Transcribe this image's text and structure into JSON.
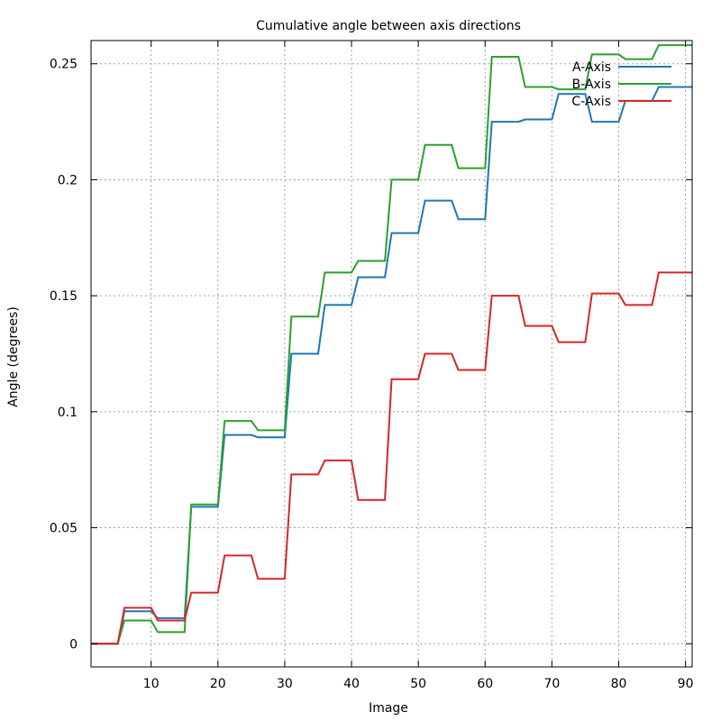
{
  "chart_data": {
    "type": "line",
    "title": "Cumulative angle between axis directions",
    "xlabel": "Image",
    "ylabel": "Angle (degrees)",
    "xlim": [
      1,
      91
    ],
    "ylim": [
      -0.01,
      0.26
    ],
    "x_ticks": [
      10,
      20,
      30,
      40,
      50,
      60,
      70,
      80,
      90
    ],
    "y_ticks": [
      0,
      0.05,
      0.1,
      0.15,
      0.2,
      0.25
    ],
    "y_tick_labels": [
      "0",
      "0.05",
      "0.1",
      "0.15",
      "0.2",
      "0.25"
    ],
    "grid": true,
    "legend_position": "top-right",
    "series": [
      {
        "name": "A-Axis",
        "color": "#1f77b4",
        "points": [
          [
            1,
            0
          ],
          [
            5,
            0
          ],
          [
            6,
            0.014
          ],
          [
            10,
            0.014
          ],
          [
            11,
            0.011
          ],
          [
            15,
            0.011
          ],
          [
            16,
            0.059
          ],
          [
            20,
            0.059
          ],
          [
            21,
            0.09
          ],
          [
            25,
            0.09
          ],
          [
            26,
            0.089
          ],
          [
            30,
            0.089
          ],
          [
            31,
            0.125
          ],
          [
            35,
            0.125
          ],
          [
            36,
            0.146
          ],
          [
            40,
            0.146
          ],
          [
            41,
            0.158
          ],
          [
            45,
            0.158
          ],
          [
            46,
            0.177
          ],
          [
            50,
            0.177
          ],
          [
            51,
            0.191
          ],
          [
            55,
            0.191
          ],
          [
            56,
            0.183
          ],
          [
            60,
            0.183
          ],
          [
            61,
            0.225
          ],
          [
            65,
            0.225
          ],
          [
            66,
            0.226
          ],
          [
            70,
            0.226
          ],
          [
            71,
            0.237
          ],
          [
            75,
            0.237
          ],
          [
            76,
            0.225
          ],
          [
            80,
            0.225
          ],
          [
            81,
            0.234
          ],
          [
            85,
            0.234
          ],
          [
            86,
            0.24
          ],
          [
            91,
            0.24
          ]
        ]
      },
      {
        "name": "B-Axis",
        "color": "#2ca02c",
        "points": [
          [
            1,
            0
          ],
          [
            5,
            0
          ],
          [
            6,
            0.01
          ],
          [
            10,
            0.01
          ],
          [
            11,
            0.005
          ],
          [
            15,
            0.005
          ],
          [
            16,
            0.06
          ],
          [
            20,
            0.06
          ],
          [
            21,
            0.096
          ],
          [
            25,
            0.096
          ],
          [
            26,
            0.092
          ],
          [
            30,
            0.092
          ],
          [
            31,
            0.141
          ],
          [
            35,
            0.141
          ],
          [
            36,
            0.16
          ],
          [
            40,
            0.16
          ],
          [
            41,
            0.165
          ],
          [
            45,
            0.165
          ],
          [
            46,
            0.2
          ],
          [
            50,
            0.2
          ],
          [
            51,
            0.215
          ],
          [
            55,
            0.215
          ],
          [
            56,
            0.205
          ],
          [
            60,
            0.205
          ],
          [
            61,
            0.253
          ],
          [
            65,
            0.253
          ],
          [
            66,
            0.24
          ],
          [
            70,
            0.24
          ],
          [
            71,
            0.239
          ],
          [
            75,
            0.239
          ],
          [
            76,
            0.254
          ],
          [
            80,
            0.254
          ],
          [
            81,
            0.252
          ],
          [
            85,
            0.252
          ],
          [
            86,
            0.258
          ],
          [
            91,
            0.258
          ]
        ]
      },
      {
        "name": "C-Axis",
        "color": "#d62728",
        "points": [
          [
            1,
            0
          ],
          [
            5,
            0
          ],
          [
            6,
            0.0155
          ],
          [
            10,
            0.0155
          ],
          [
            11,
            0.01
          ],
          [
            15,
            0.01
          ],
          [
            16,
            0.022
          ],
          [
            20,
            0.022
          ],
          [
            21,
            0.038
          ],
          [
            25,
            0.038
          ],
          [
            26,
            0.028
          ],
          [
            30,
            0.028
          ],
          [
            31,
            0.073
          ],
          [
            35,
            0.073
          ],
          [
            36,
            0.079
          ],
          [
            40,
            0.079
          ],
          [
            41,
            0.062
          ],
          [
            45,
            0.062
          ],
          [
            46,
            0.114
          ],
          [
            50,
            0.114
          ],
          [
            51,
            0.125
          ],
          [
            55,
            0.125
          ],
          [
            56,
            0.118
          ],
          [
            60,
            0.118
          ],
          [
            61,
            0.15
          ],
          [
            65,
            0.15
          ],
          [
            66,
            0.137
          ],
          [
            70,
            0.137
          ],
          [
            71,
            0.13
          ],
          [
            75,
            0.13
          ],
          [
            76,
            0.151
          ],
          [
            80,
            0.151
          ],
          [
            81,
            0.146
          ],
          [
            85,
            0.146
          ],
          [
            86,
            0.16
          ],
          [
            91,
            0.16
          ]
        ]
      }
    ]
  }
}
